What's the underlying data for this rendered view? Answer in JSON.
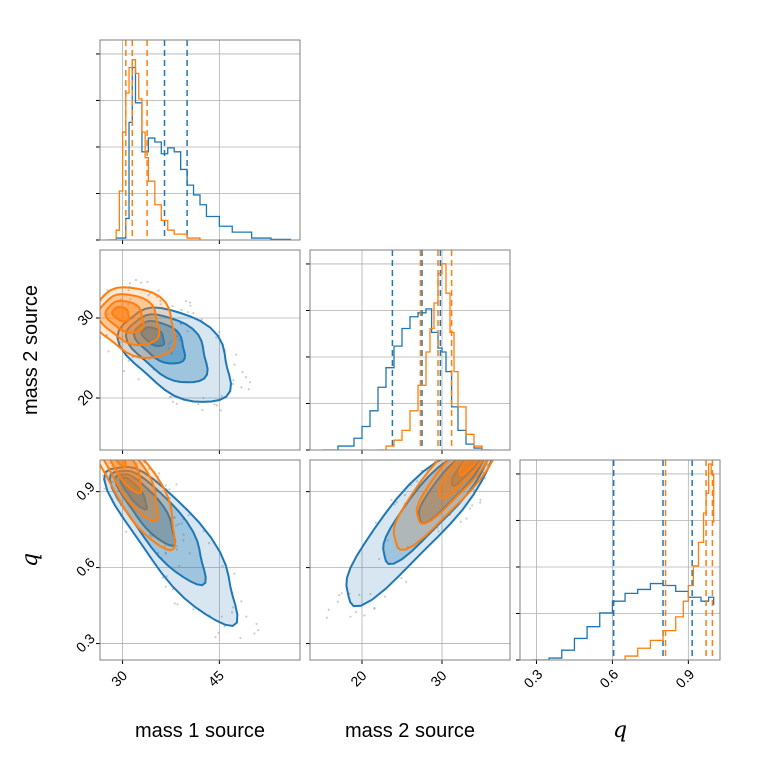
{
  "colors": {
    "series_a": "#1f77b4",
    "series_b": "#ff7f0e",
    "grid": "#b0b0b0",
    "frame": "#808080",
    "samples": "#9a9a9a"
  },
  "chart_data": {
    "type": "corner",
    "parameters": [
      "mass 1 source",
      "mass 2 source",
      "q"
    ],
    "axis_labels": {
      "mass_1": "mass 1 source",
      "mass_2": "mass 2 source",
      "q": "q"
    },
    "ranges": {
      "mass_1": [
        26.5,
        57.5
      ],
      "mass_2": [
        13.5,
        38.5
      ],
      "q": [
        0.235,
        1.025
      ]
    },
    "ticks": {
      "mass_1": {
        "values": [
          30,
          45
        ],
        "labels": [
          "30",
          "45"
        ]
      },
      "mass_2": {
        "values": [
          20,
          30
        ],
        "labels": [
          "20",
          "30"
        ]
      },
      "q": {
        "values": [
          0.3,
          0.6,
          0.9
        ],
        "labels": [
          "0.3",
          "0.6",
          "0.9"
        ]
      }
    },
    "grid": true,
    "series": [
      {
        "color": "#1f77b4",
        "quantiles": {
          "mass_1": [
            31.5,
            36.5,
            40.0
          ],
          "mass_2": [
            23.8,
            27.5,
            29.8
          ],
          "q": [
            0.605,
            0.8,
            0.915
          ]
        },
        "histograms": {
          "mass_1": {
            "x": [
              27.5,
              29,
              30.5,
              31,
              31.5,
              32,
              33,
              34,
              35,
              36,
              37,
              38,
              39,
              40,
              41,
              42,
              43,
              45,
              47,
              50,
              53,
              56
            ],
            "y": [
              0,
              0.01,
              0.11,
              0.6,
              0.88,
              0.7,
              0.45,
              0.52,
              0.5,
              0.44,
              0.47,
              0.45,
              0.36,
              0.28,
              0.23,
              0.18,
              0.12,
              0.07,
              0.04,
              0.01,
              0.003,
              0
            ]
          },
          "mass_2": {
            "x": [
              15,
              17,
              19,
              20,
              21,
              22,
              23,
              24,
              25,
              26,
              27,
              28,
              28.7,
              29.5,
              30,
              30.5,
              31.2,
              32,
              33,
              34,
              35,
              36
            ],
            "y": [
              0,
              0.02,
              0.06,
              0.12,
              0.2,
              0.32,
              0.42,
              0.53,
              0.62,
              0.68,
              0.7,
              0.72,
              0.6,
              0.52,
              0.5,
              0.4,
              0.22,
              0.1,
              0.03,
              0.01,
              0,
              0
            ]
          },
          "q": {
            "x": [
              0.28,
              0.35,
              0.4,
              0.45,
              0.5,
              0.55,
              0.6,
              0.65,
              0.7,
              0.75,
              0.8,
              0.85,
              0.9,
              0.95,
              0.98,
              1.0
            ],
            "y": [
              0,
              0.01,
              0.05,
              0.11,
              0.17,
              0.24,
              0.3,
              0.34,
              0.36,
              0.39,
              0.38,
              0.35,
              0.32,
              0.3,
              0.32,
              0.28
            ]
          }
        },
        "contour_centers": {
          "m1_m2": [
            38.5,
            25.5
          ],
          "m1_q": [
            38.0,
            0.7
          ],
          "m2_q": [
            27.0,
            0.79
          ]
        }
      },
      {
        "color": "#ff7f0e",
        "quantiles": {
          "mass_1": [
            30.5,
            31.5,
            33.8
          ],
          "mass_2": [
            27.3,
            29.5,
            31.2
          ],
          "q": [
            0.81,
            0.97,
            0.995
          ]
        },
        "histograms": {
          "mass_1": {
            "x": [
              28,
              29,
              29.5,
              30,
              30.5,
              31,
              31.5,
              32,
              32.5,
              33,
              33.5,
              34,
              35,
              36,
              37,
              38,
              40,
              42
            ],
            "y": [
              0,
              0.05,
              0.25,
              0.55,
              0.75,
              0.88,
              0.92,
              0.85,
              0.72,
              0.55,
              0.42,
              0.3,
              0.18,
              0.1,
              0.05,
              0.03,
              0.01,
              0
            ]
          },
          "mass_2": {
            "x": [
              22,
              23,
              24,
              25,
              26,
              27,
              28,
              28.5,
              29,
              29.5,
              30,
              30.5,
              31,
              31.5,
              32,
              33,
              34,
              35
            ],
            "y": [
              0,
              0.02,
              0.05,
              0.1,
              0.2,
              0.33,
              0.5,
              0.62,
              0.75,
              0.9,
              0.95,
              0.8,
              0.6,
              0.4,
              0.22,
              0.08,
              0.02,
              0
            ]
          },
          "q": {
            "x": [
              0.6,
              0.65,
              0.7,
              0.75,
              0.8,
              0.85,
              0.88,
              0.9,
              0.92,
              0.94,
              0.96,
              0.97,
              0.98,
              0.99,
              1.0
            ],
            "y": [
              0,
              0.02,
              0.06,
              0.1,
              0.15,
              0.22,
              0.3,
              0.38,
              0.48,
              0.6,
              0.75,
              0.85,
              1.0,
              0.95,
              0.7
            ]
          }
        },
        "contour_centers": {
          "m1_m2": [
            32.0,
            29.5
          ],
          "m1_q": [
            32.0,
            0.92
          ],
          "m2_q": [
            30.5,
            0.92
          ]
        }
      }
    ]
  }
}
